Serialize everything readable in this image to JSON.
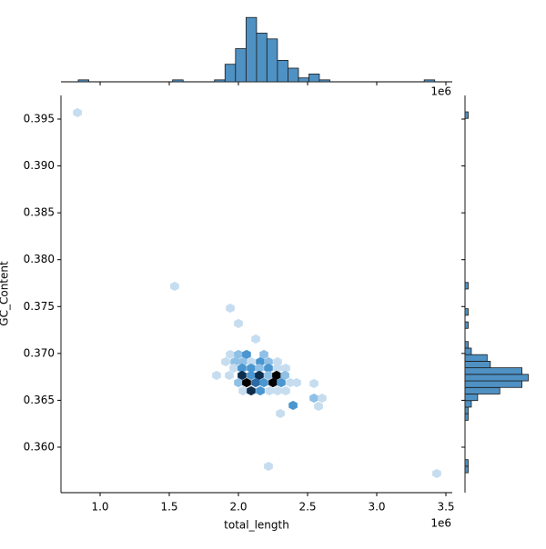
{
  "chart_data": {
    "type": "jointplot-hex",
    "x_label": "total_length",
    "y_label": "GC_Content",
    "x_offset_label": "1e6",
    "xlim": [
      0.717,
      3.546
    ],
    "ylim": [
      0.35515,
      0.39752
    ],
    "xticks": [
      {
        "value": 1,
        "label": "1.0"
      },
      1.5,
      {
        "value": 2,
        "label": "2.0"
      },
      2.5,
      {
        "value": 3,
        "label": "3.0"
      },
      3.5
    ],
    "yticks": [
      {
        "value": 0.36,
        "label": "0.360"
      },
      {
        "value": 0.365,
        "label": "0.365"
      },
      {
        "value": 0.37,
        "label": "0.370"
      },
      {
        "value": 0.375,
        "label": "0.375"
      },
      {
        "value": 0.38,
        "label": "0.380"
      },
      {
        "value": 0.385,
        "label": "0.385"
      },
      {
        "value": 0.39,
        "label": "0.390"
      },
      {
        "value": 0.395,
        "label": "0.395"
      }
    ],
    "hex_colors": [
      "#c6ddf0",
      "#8fc0e6",
      "#4a96d0",
      "#2a6aa6",
      "#0d2d4d",
      "#000000"
    ],
    "hexbin": {
      "x": [
        1.941,
        2.0,
        2.059,
        2.184,
        1.908,
        1.974,
        2.033,
        2.092,
        2.158,
        2.217,
        2.283,
        1.967,
        2.026,
        2.092,
        2.151,
        2.217,
        2.283,
        2.342,
        1.842,
        1.934,
        2.026,
        2.092,
        2.151,
        2.217,
        2.276,
        2.336,
        2.0,
        2.059,
        2.125,
        2.184,
        2.25,
        2.309,
        2.375,
        2.421,
        2.033,
        2.092,
        2.158,
        2.224,
        2.283,
        2.342,
        2.546,
        2.395,
        2.546,
        2.605,
        2.579,
        2.303,
        2.217,
        3.434,
        0.836,
        1.539,
        1.941,
        2.0,
        2.125
      ],
      "y": [
        0.36989,
        0.36989,
        0.36989,
        0.36989,
        0.36911,
        0.36911,
        0.36911,
        0.36911,
        0.36911,
        0.36911,
        0.36911,
        0.36843,
        0.36843,
        0.36843,
        0.36843,
        0.36843,
        0.36843,
        0.36843,
        0.36766,
        0.36766,
        0.36766,
        0.36766,
        0.36766,
        0.36766,
        0.36766,
        0.36766,
        0.36688,
        0.36688,
        0.36688,
        0.36688,
        0.36688,
        0.36688,
        0.36688,
        0.36688,
        0.36601,
        0.36601,
        0.36601,
        0.36601,
        0.36601,
        0.36601,
        0.36679,
        0.36446,
        0.36523,
        0.36523,
        0.36436,
        0.36359,
        0.35796,
        0.35719,
        0.39568,
        0.37716,
        0.37483,
        0.37319,
        0.37154
      ],
      "counts": [
        1,
        2,
        3,
        2,
        1,
        2,
        2,
        1,
        3,
        2,
        1,
        1,
        3,
        3,
        2,
        3,
        1,
        1,
        1,
        1,
        5,
        3,
        5,
        2,
        6,
        2,
        2,
        6,
        4,
        3,
        6,
        3,
        1,
        1,
        1,
        5,
        3,
        1,
        1,
        1,
        1,
        3,
        2,
        1,
        1,
        1,
        1,
        1,
        1,
        1,
        1,
        1,
        1
      ]
    },
    "hist_color": "#4f91c3",
    "top_hist": {
      "bins": [
        0.842,
        0.918,
        0.994,
        1.069,
        1.145,
        1.221,
        1.297,
        1.373,
        1.448,
        1.524,
        1.6,
        1.676,
        1.752,
        1.827,
        1.903,
        1.979,
        2.055,
        2.131,
        2.206,
        2.282,
        2.358,
        2.434,
        2.51,
        2.585,
        2.661,
        2.737,
        2.813,
        2.889,
        2.964,
        3.04,
        3.116,
        3.192,
        3.268,
        3.343,
        3.419
      ],
      "counts": [
        1,
        0,
        0,
        0,
        0,
        0,
        0,
        0,
        0,
        1,
        0,
        0,
        0,
        1,
        9,
        17,
        33,
        25,
        22,
        11,
        7,
        2,
        4,
        1,
        0,
        0,
        0,
        0,
        0,
        0,
        0,
        0,
        0,
        1
      ],
      "count_lim": [
        0,
        34.5
      ]
    },
    "right_hist": {
      "bins": [
        0.35657,
        0.35727,
        0.35797,
        0.35867,
        0.35937,
        0.36007,
        0.36077,
        0.36147,
        0.36217,
        0.36287,
        0.36357,
        0.36427,
        0.36497,
        0.36567,
        0.36637,
        0.36707,
        0.36777,
        0.36847,
        0.36917,
        0.36987,
        0.37057,
        0.37127,
        0.37197,
        0.37267,
        0.37337,
        0.37407,
        0.37477,
        0.37547,
        0.37617,
        0.37687,
        0.37757,
        0.37827,
        0.37897,
        0.37967,
        0.38037,
        0.38107,
        0.38177,
        0.38247,
        0.38317,
        0.38387,
        0.38457,
        0.38527,
        0.38597,
        0.38667,
        0.38737,
        0.38807,
        0.38877,
        0.38947,
        0.39017,
        0.39087,
        0.39157,
        0.39227,
        0.39297,
        0.39367,
        0.39437,
        0.39507,
        0.39577
      ],
      "counts": [
        0,
        1,
        1,
        0,
        0,
        0,
        0,
        0,
        0,
        1,
        1,
        2,
        4,
        11,
        18,
        20,
        18,
        8,
        7,
        2,
        1,
        0,
        0,
        1,
        0,
        1,
        0,
        0,
        0,
        1,
        0,
        0,
        0,
        0,
        0,
        0,
        0,
        0,
        0,
        0,
        0,
        0,
        0,
        0,
        0,
        0,
        0,
        0,
        0,
        0,
        0,
        0,
        0,
        0,
        0,
        1
      ],
      "count_lim": [
        0,
        21
      ]
    }
  }
}
